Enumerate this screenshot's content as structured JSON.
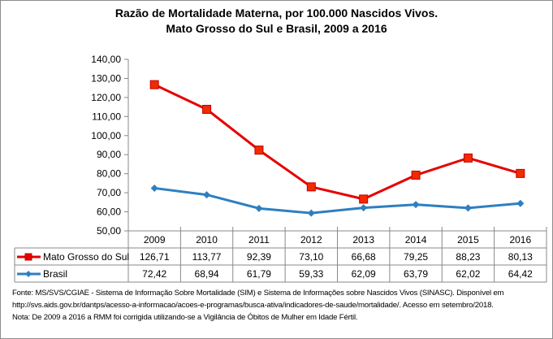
{
  "chart_data": {
    "type": "line",
    "title_line1": "Razão de Mortalidade Materna, por 100.000 Nascidos Vivos.",
    "title_line2": "Mato Grosso do Sul e Brasil, 2009 a 2016",
    "xlabel": "",
    "ylabel": "",
    "ylim": [
      50,
      140
    ],
    "y_ticks": [
      "50,00",
      "60,00",
      "70,00",
      "80,00",
      "90,00",
      "100,00",
      "110,00",
      "120,00",
      "130,00",
      "140,00"
    ],
    "grid": false,
    "legend": "data-table",
    "categories": [
      "2009",
      "2010",
      "2011",
      "2012",
      "2013",
      "2014",
      "2015",
      "2016"
    ],
    "series": [
      {
        "name": "Mato Grosso do Sul",
        "color": "#e60000",
        "marker": "square",
        "values": [
          126.71,
          113.77,
          92.39,
          73.1,
          66.68,
          79.25,
          88.23,
          80.13
        ],
        "labels": [
          "126,71",
          "113,77",
          "92,39",
          "73,10",
          "66,68",
          "79,25",
          "88,23",
          "80,13"
        ]
      },
      {
        "name": "Brasil",
        "color": "#2e7fc0",
        "marker": "diamond",
        "values": [
          72.42,
          68.94,
          61.79,
          59.33,
          62.09,
          63.79,
          62.02,
          64.42
        ],
        "labels": [
          "72,42",
          "68,94",
          "61,79",
          "59,33",
          "62,09",
          "63,79",
          "62,02",
          "64,42"
        ]
      }
    ]
  },
  "notes": {
    "line1": "Fonte: MS/SVS/CGIAE - Sistema de Informação Sobre Mortalidade (SIM) e Sistema de Informações sobre Nascidos Vivos (SINASC). Disponível em",
    "line2": "http://svs.aids.gov.br/dantps/acesso-a-informacao/acoes-e-programas/busca-ativa/indicadores-de-saude/mortalidade/. Acesso em setembro/2018.",
    "line3": "Nota: De 2009 a 2016 a RMM foi corrigida utilizando-se a Vigilância de Óbitos de Mulher em Idade Fértil."
  }
}
